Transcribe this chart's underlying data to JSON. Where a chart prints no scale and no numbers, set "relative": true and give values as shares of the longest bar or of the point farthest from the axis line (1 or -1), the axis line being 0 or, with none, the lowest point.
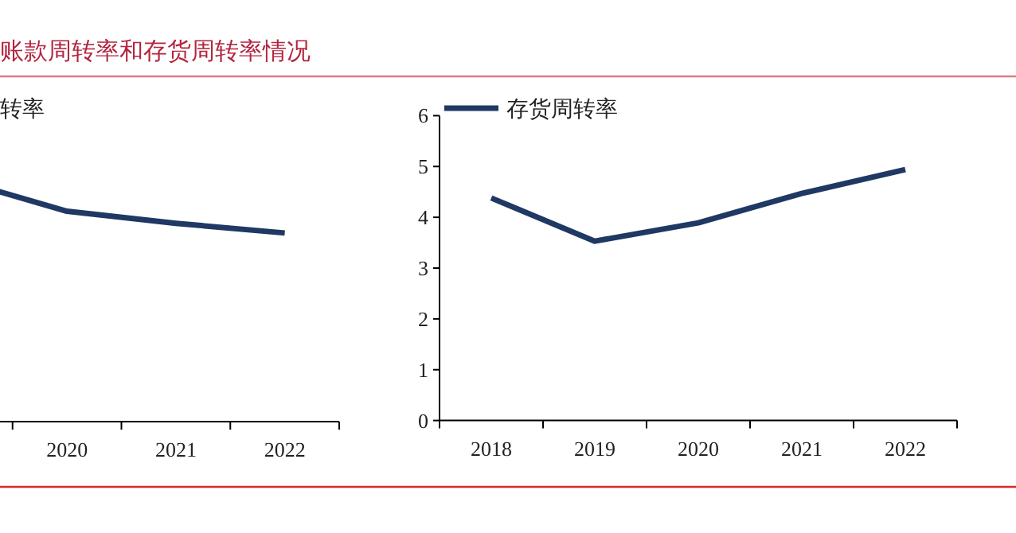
{
  "chart_data": [
    {
      "type": "line",
      "title": "账款周转率和存货周转率情况",
      "relative": true,
      "categories": [
        null,
        "2020",
        "2021",
        "2022"
      ],
      "legend": "top left",
      "series": [
        {
          "name": "转率",
          "color": "#1f3864",
          "values": [
            1,
            0.87,
            0.82,
            0.78
          ]
        }
      ]
    },
    {
      "type": "line",
      "categories": [
        "2018",
        "2019",
        "2020",
        "2021",
        "2022"
      ],
      "ylim": [
        0,
        6
      ],
      "yticks": [
        0,
        1,
        2,
        3,
        4,
        5,
        6
      ],
      "legend": "top left",
      "series": [
        {
          "name": "存货周转率",
          "color": "#1f3864",
          "values": [
            4.38,
            3.53,
            3.89,
            4.47,
            4.94
          ]
        }
      ]
    }
  ]
}
